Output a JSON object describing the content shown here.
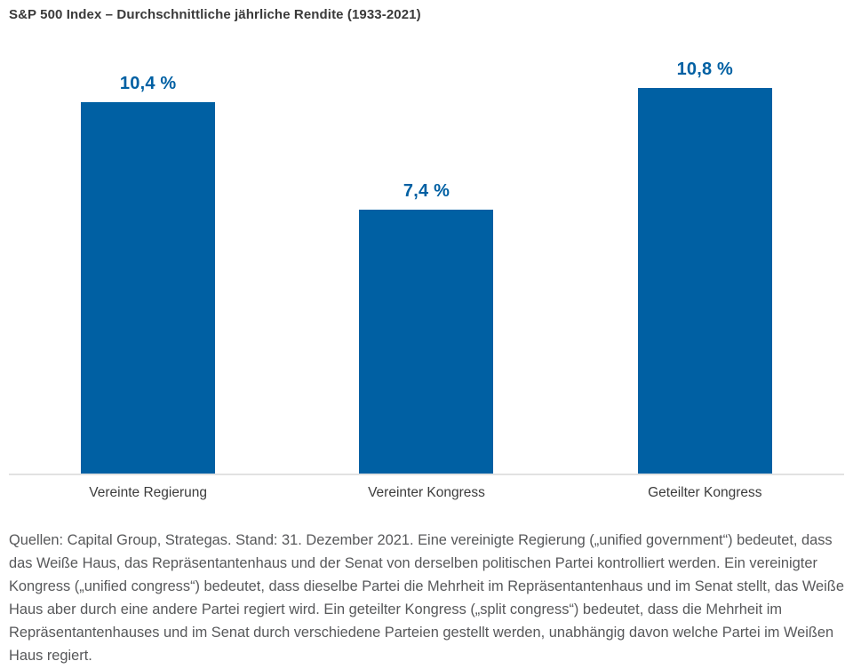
{
  "header": {
    "title": "S&P 500 Index – Durchschnittliche jährliche Rendite (1933-2021)"
  },
  "chart_data": {
    "type": "bar",
    "title": "S&P 500 Index – Durchschnittliche jährliche Rendite (1933-2021)",
    "categories": [
      "Vereinte Regierung",
      "Vereinter Kongress",
      "Geteilter Kongress"
    ],
    "values": [
      10.4,
      7.4,
      10.8
    ],
    "value_labels": [
      "10,4 %",
      "7,4 %",
      "10,8 %"
    ],
    "unit": "%",
    "ylim": [
      0,
      11.8
    ],
    "grid": false,
    "legend": "none",
    "y_axis_visible": false,
    "baseline_visible": true,
    "bar_color": "#0060a3",
    "value_label_color": "#0060a3",
    "axis_line_color": "#e2e2e2"
  },
  "footnote": {
    "text": "Quellen: Capital Group, Strategas. Stand: 31. Dezember 2021. Eine vereinigte Regierung („unified government“) bedeutet, dass das Weiße Haus, das Repräsentantenhaus und der Senat von derselben politischen Partei kontrolliert werden. Ein vereinigter Kongress („unified congress“) bedeutet, dass dieselbe Partei die Mehrheit im Repräsentantenhaus und im Senat stellt, das Weiße Haus aber durch eine andere Partei regiert wird. Ein geteilter Kongress („split congress“) bedeutet, dass die Mehrheit im Repräsentantenhauses und im Senat durch verschiedene Parteien gestellt werden, unabhängig davon welche Partei im Weißen Haus regiert."
  }
}
